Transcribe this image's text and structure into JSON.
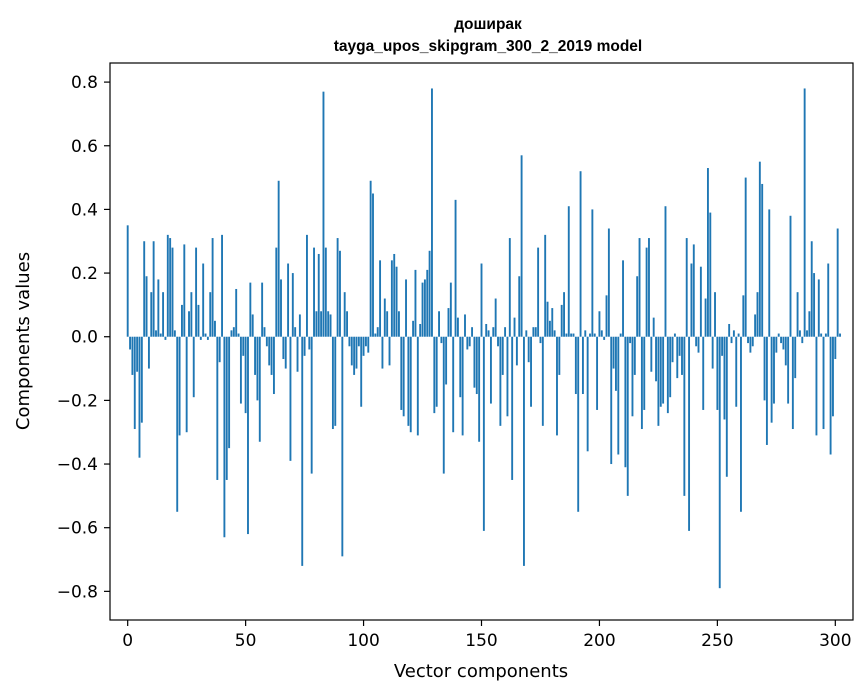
{
  "chart_data": {
    "type": "bar",
    "title": "доширак",
    "subtitle": "tayga_upos_skipgram_300_2_2019 model",
    "xlabel": "Vector components",
    "ylabel": "Components values",
    "xlim": [
      -7.5,
      307.5
    ],
    "ylim": [
      -0.89,
      0.86
    ],
    "x_ticks": [
      0,
      50,
      100,
      150,
      200,
      250,
      300
    ],
    "y_ticks": [
      0.8,
      0.6,
      0.4,
      0.2,
      0.0,
      -0.2,
      -0.4,
      -0.6,
      -0.8
    ],
    "x_tick_labels": [
      "0",
      "50",
      "100",
      "150",
      "200",
      "250",
      "300"
    ],
    "y_tick_labels": [
      "0.8",
      "0.6",
      "0.4",
      "0.2",
      "0.0",
      "−0.2",
      "−0.4",
      "−0.6",
      "−0.8"
    ],
    "bar_color": "#1f77b4",
    "values": [
      0.35,
      -0.04,
      -0.12,
      -0.29,
      -0.11,
      -0.38,
      -0.27,
      0.3,
      0.19,
      -0.1,
      0.14,
      0.3,
      0.02,
      0.18,
      0.01,
      0.14,
      -0.01,
      0.32,
      0.31,
      0.28,
      0.02,
      -0.55,
      -0.31,
      0.1,
      0.29,
      -0.3,
      0.08,
      0.14,
      -0.19,
      0.28,
      0.1,
      -0.01,
      0.23,
      0.01,
      -0.01,
      0.14,
      0.31,
      0.05,
      -0.45,
      -0.08,
      0.32,
      -0.63,
      -0.45,
      -0.35,
      0.02,
      0.03,
      0.15,
      0.01,
      -0.21,
      -0.06,
      -0.24,
      -0.62,
      0.17,
      0.07,
      -0.12,
      -0.2,
      -0.33,
      0.17,
      0.03,
      -0.03,
      -0.09,
      -0.12,
      -0.18,
      0.28,
      0.49,
      0.18,
      -0.07,
      -0.1,
      0.23,
      -0.39,
      0.2,
      0.03,
      -0.11,
      0.07,
      -0.72,
      -0.06,
      0.32,
      -0.04,
      -0.43,
      0.28,
      0.08,
      0.26,
      0.08,
      0.77,
      0.28,
      0.08,
      0.07,
      -0.29,
      -0.28,
      0.31,
      0.27,
      -0.69,
      0.14,
      0.08,
      -0.03,
      -0.09,
      -0.12,
      -0.1,
      -0.03,
      -0.22,
      -0.06,
      -0.03,
      -0.05,
      0.49,
      0.45,
      0.01,
      0.03,
      0.24,
      -0.1,
      0.12,
      0.08,
      -0.09,
      0.24,
      0.26,
      0.22,
      0.08,
      -0.23,
      -0.25,
      0.18,
      -0.28,
      -0.3,
      0.05,
      0.21,
      -0.31,
      0.04,
      0.17,
      0.18,
      0.21,
      0.27,
      0.78,
      -0.24,
      -0.22,
      0.08,
      -0.02,
      -0.43,
      -0.15,
      0.09,
      0.17,
      -0.3,
      0.43,
      0.06,
      -0.19,
      -0.31,
      0.07,
      -0.04,
      -0.03,
      0.03,
      -0.16,
      -0.18,
      -0.33,
      0.23,
      -0.61,
      0.04,
      0.02,
      -0.21,
      0.03,
      0.12,
      -0.03,
      -0.28,
      -0.12,
      0.03,
      -0.25,
      0.31,
      -0.45,
      0.06,
      -0.09,
      0.19,
      0.57,
      -0.72,
      0.02,
      -0.08,
      -0.22,
      0.03,
      0.03,
      0.28,
      -0.02,
      -0.28,
      0.32,
      0.11,
      0.05,
      0.09,
      0.02,
      -0.31,
      -0.12,
      0.1,
      0.14,
      0.01,
      0.41,
      0.01,
      0.01,
      -0.18,
      -0.55,
      0.52,
      -0.18,
      0.02,
      -0.36,
      0.01,
      0.4,
      0.01,
      -0.23,
      0.08,
      0.02,
      -0.01,
      0.13,
      0.34,
      -0.4,
      -0.1,
      -0.17,
      -0.37,
      0.01,
      0.24,
      -0.41,
      -0.5,
      -0.02,
      -0.25,
      -0.12,
      0.19,
      0.31,
      -0.29,
      -0.23,
      0.28,
      0.31,
      -0.11,
      0.06,
      -0.14,
      -0.28,
      -0.22,
      -0.21,
      0.41,
      -0.24,
      -0.19,
      -0.08,
      0.01,
      -0.13,
      -0.06,
      -0.12,
      -0.5,
      0.31,
      -0.61,
      0.23,
      0.29,
      -0.03,
      -0.05,
      0.22,
      -0.23,
      0.12,
      0.53,
      0.39,
      -0.1,
      0.14,
      -0.23,
      -0.79,
      -0.06,
      -0.26,
      -0.44,
      0.04,
      -0.02,
      0.02,
      -0.22,
      0.01,
      -0.55,
      0.13,
      0.5,
      -0.02,
      -0.05,
      -0.03,
      0.07,
      0.14,
      0.55,
      0.48,
      -0.2,
      -0.34,
      0.4,
      -0.27,
      -0.21,
      -0.05,
      0.01,
      -0.02,
      -0.04,
      -0.09,
      -0.21,
      0.38,
      -0.29,
      -0.13,
      0.14,
      0.02,
      -0.02,
      0.78,
      0.02,
      0.08,
      0.3,
      0.2,
      -0.31,
      0.18,
      0.01,
      -0.29,
      0.01,
      0.23,
      -0.37,
      -0.25,
      -0.07,
      0.34,
      0.01
    ]
  }
}
